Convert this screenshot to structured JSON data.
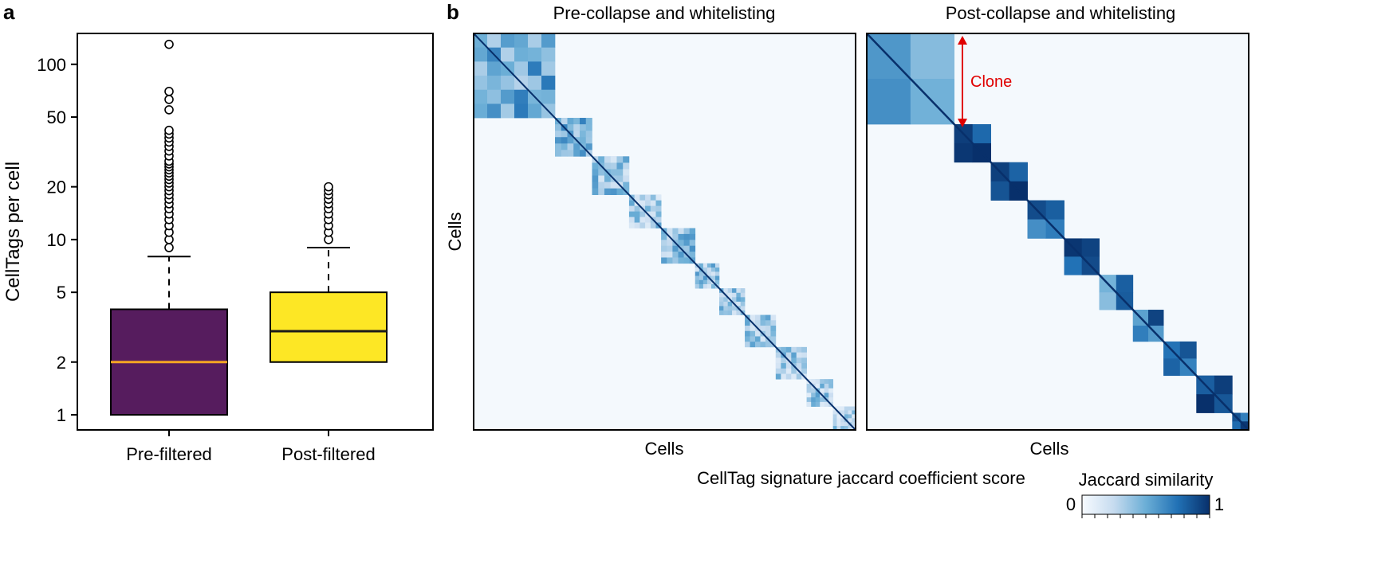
{
  "panels": {
    "a_label": "a",
    "b_label": "b"
  },
  "chart_data": [
    {
      "type": "box",
      "panel": "a",
      "ylabel": "CellTags per cell",
      "yscale": "log",
      "ylim": [
        0.82,
        150
      ],
      "yticks": [
        1,
        2,
        5,
        10,
        20,
        50,
        100
      ],
      "categories": [
        "Pre-filtered",
        "Post-filtered"
      ],
      "colors": [
        "#561c5e",
        "#fde725"
      ],
      "median_colors": [
        "#f5a623",
        "#1a1a1a"
      ],
      "boxes": [
        {
          "q1": 1,
          "median": 2,
          "q3": 4,
          "whisker_low": 1,
          "whisker_high": 8,
          "outliers": [
            9,
            10,
            11,
            12,
            13,
            14,
            15,
            16,
            17,
            18,
            19,
            20,
            21,
            22,
            23,
            24,
            25,
            26,
            27,
            28,
            30,
            32,
            34,
            36,
            38,
            40,
            42,
            55,
            63,
            70,
            130
          ]
        },
        {
          "q1": 2,
          "median": 3,
          "q3": 5,
          "whisker_low": 2,
          "whisker_high": 9,
          "outliers": [
            10,
            11,
            12,
            13,
            14,
            15,
            16,
            17,
            18,
            19,
            20
          ]
        }
      ]
    },
    {
      "type": "heatmap",
      "panel": "b",
      "title": "Pre-collapse and whitelisting",
      "xlabel": "Cells",
      "ylabel": "Cells",
      "blocks": [
        {
          "start": 0,
          "size": 0.213,
          "intensity": 0.5
        },
        {
          "start": 0.213,
          "size": 0.097,
          "intensity": 0.48
        },
        {
          "start": 0.31,
          "size": 0.097,
          "intensity": 0.38
        },
        {
          "start": 0.407,
          "size": 0.084,
          "intensity": 0.36
        },
        {
          "start": 0.491,
          "size": 0.089,
          "intensity": 0.4
        },
        {
          "start": 0.58,
          "size": 0.063,
          "intensity": 0.38
        },
        {
          "start": 0.643,
          "size": 0.067,
          "intensity": 0.38
        },
        {
          "start": 0.71,
          "size": 0.081,
          "intensity": 0.34
        },
        {
          "start": 0.791,
          "size": 0.081,
          "intensity": 0.34
        },
        {
          "start": 0.872,
          "size": 0.069,
          "intensity": 0.34
        },
        {
          "start": 0.941,
          "size": 0.059,
          "intensity": 0.3
        }
      ]
    },
    {
      "type": "heatmap",
      "panel": "b",
      "title": "Post-collapse and whitelisting",
      "xlabel": "Cells",
      "annotation": "Clone",
      "blocks": [
        {
          "start": 0,
          "size": 0.229,
          "intensity": 0.6
        },
        {
          "start": 0.229,
          "size": 0.096,
          "intensity": 0.97
        },
        {
          "start": 0.325,
          "size": 0.096,
          "intensity": 0.9
        },
        {
          "start": 0.421,
          "size": 0.096,
          "intensity": 0.82
        },
        {
          "start": 0.517,
          "size": 0.092,
          "intensity": 0.9
        },
        {
          "start": 0.609,
          "size": 0.088,
          "intensity": 0.62
        },
        {
          "start": 0.697,
          "size": 0.08,
          "intensity": 0.72
        },
        {
          "start": 0.777,
          "size": 0.086,
          "intensity": 0.78
        },
        {
          "start": 0.863,
          "size": 0.094,
          "intensity": 0.97
        },
        {
          "start": 0.957,
          "size": 0.072,
          "intensity": 0.85
        }
      ]
    }
  ],
  "footer_title": "CellTag signature jaccard coefficient score",
  "legend": {
    "title": "Jaccard similarity",
    "min_label": "0",
    "max_label": "1",
    "low_color": "#f7fbff",
    "high_color": "#08306b"
  }
}
